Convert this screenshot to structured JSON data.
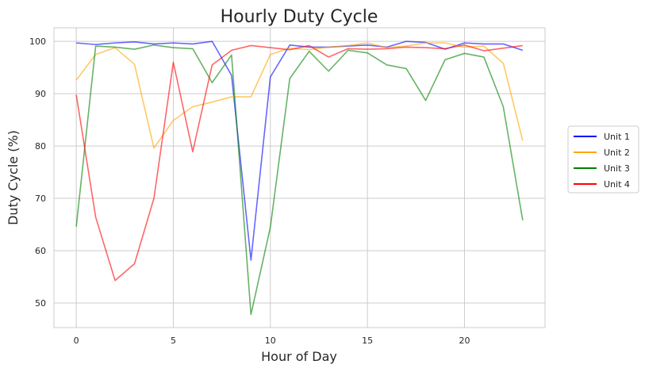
{
  "chart_data": {
    "type": "line",
    "title": "Hourly Duty Cycle",
    "xlabel": "Hour of Day",
    "ylabel": "Duty Cycle (%)",
    "xlim": [
      -1.15,
      24.15
    ],
    "ylim": [
      45.3,
      102.6
    ],
    "xticks": [
      0,
      5,
      10,
      15,
      20
    ],
    "yticks": [
      50,
      60,
      70,
      80,
      90,
      100
    ],
    "grid": true,
    "legend_position": "center-right-outside",
    "x": [
      0,
      1,
      2,
      3,
      4,
      5,
      6,
      7,
      8,
      9,
      10,
      11,
      12,
      13,
      14,
      15,
      16,
      17,
      18,
      19,
      20,
      21,
      22,
      23
    ],
    "series": [
      {
        "name": "Unit 1",
        "color": "#0000ff",
        "values": [
          99.7,
          99.4,
          99.7,
          99.9,
          99.5,
          99.7,
          99.5,
          100.0,
          93.5,
          58.2,
          93.2,
          99.3,
          98.9,
          98.9,
          99.1,
          99.3,
          98.9,
          100.0,
          99.8,
          98.5,
          99.7,
          99.5,
          99.5,
          98.3
        ]
      },
      {
        "name": "Unit 2",
        "color": "#ffa500",
        "values": [
          92.6,
          97.5,
          98.8,
          95.6,
          79.6,
          84.9,
          87.5,
          88.4,
          89.4,
          89.4,
          97.5,
          98.7,
          98.4,
          98.9,
          99.2,
          99.7,
          98.8,
          99.1,
          99.7,
          99.7,
          98.9,
          99.1,
          95.8,
          81.0
        ]
      },
      {
        "name": "Unit 3",
        "color": "#008000",
        "values": [
          64.6,
          99.1,
          98.9,
          98.5,
          99.3,
          98.8,
          98.6,
          92.1,
          97.4,
          47.8,
          64.5,
          92.9,
          98.1,
          94.3,
          98.3,
          97.8,
          95.5,
          94.8,
          88.7,
          96.5,
          97.7,
          97.0,
          87.5,
          65.8
        ]
      },
      {
        "name": "Unit 4",
        "color": "#ff0000",
        "values": [
          89.8,
          66.4,
          54.3,
          57.5,
          70.0,
          96.0,
          78.9,
          95.5,
          98.3,
          99.2,
          98.8,
          98.4,
          99.2,
          97.0,
          98.6,
          98.5,
          98.6,
          98.9,
          98.8,
          98.6,
          99.3,
          98.2,
          98.7,
          99.2
        ]
      }
    ]
  }
}
